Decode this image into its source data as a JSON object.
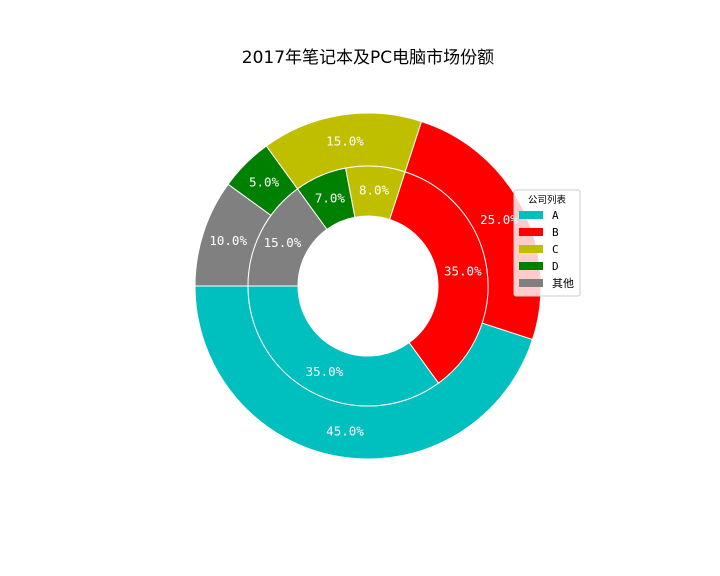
{
  "chart_data": {
    "type": "pie",
    "title": "2017年笔记本及PC电脑市场份额",
    "legend": {
      "title": "公司列表",
      "placement": "right",
      "entries": [
        {
          "label": "A",
          "color": "#00bfbf"
        },
        {
          "label": "B",
          "color": "#ff0000"
        },
        {
          "label": "C",
          "color": "#bfbf00"
        },
        {
          "label": "D",
          "color": "#008000"
        },
        {
          "label": "其他",
          "color": "#808080"
        }
      ]
    },
    "series": [
      {
        "ring": "outer",
        "values": [
          45,
          25,
          15,
          5,
          10
        ],
        "labels": [
          "45.0%",
          "25.0%",
          "15.0%",
          "5.0%",
          "10.0%"
        ]
      },
      {
        "ring": "inner",
        "values": [
          35,
          35,
          8,
          7,
          15
        ],
        "labels": [
          "35.0%",
          "35.0%",
          "8.0%",
          "7.0%",
          "15.0%"
        ]
      }
    ],
    "categories": [
      "A",
      "B",
      "C",
      "D",
      "其他"
    ],
    "start_angle_deg": 180,
    "direction": "counterclockwise"
  }
}
